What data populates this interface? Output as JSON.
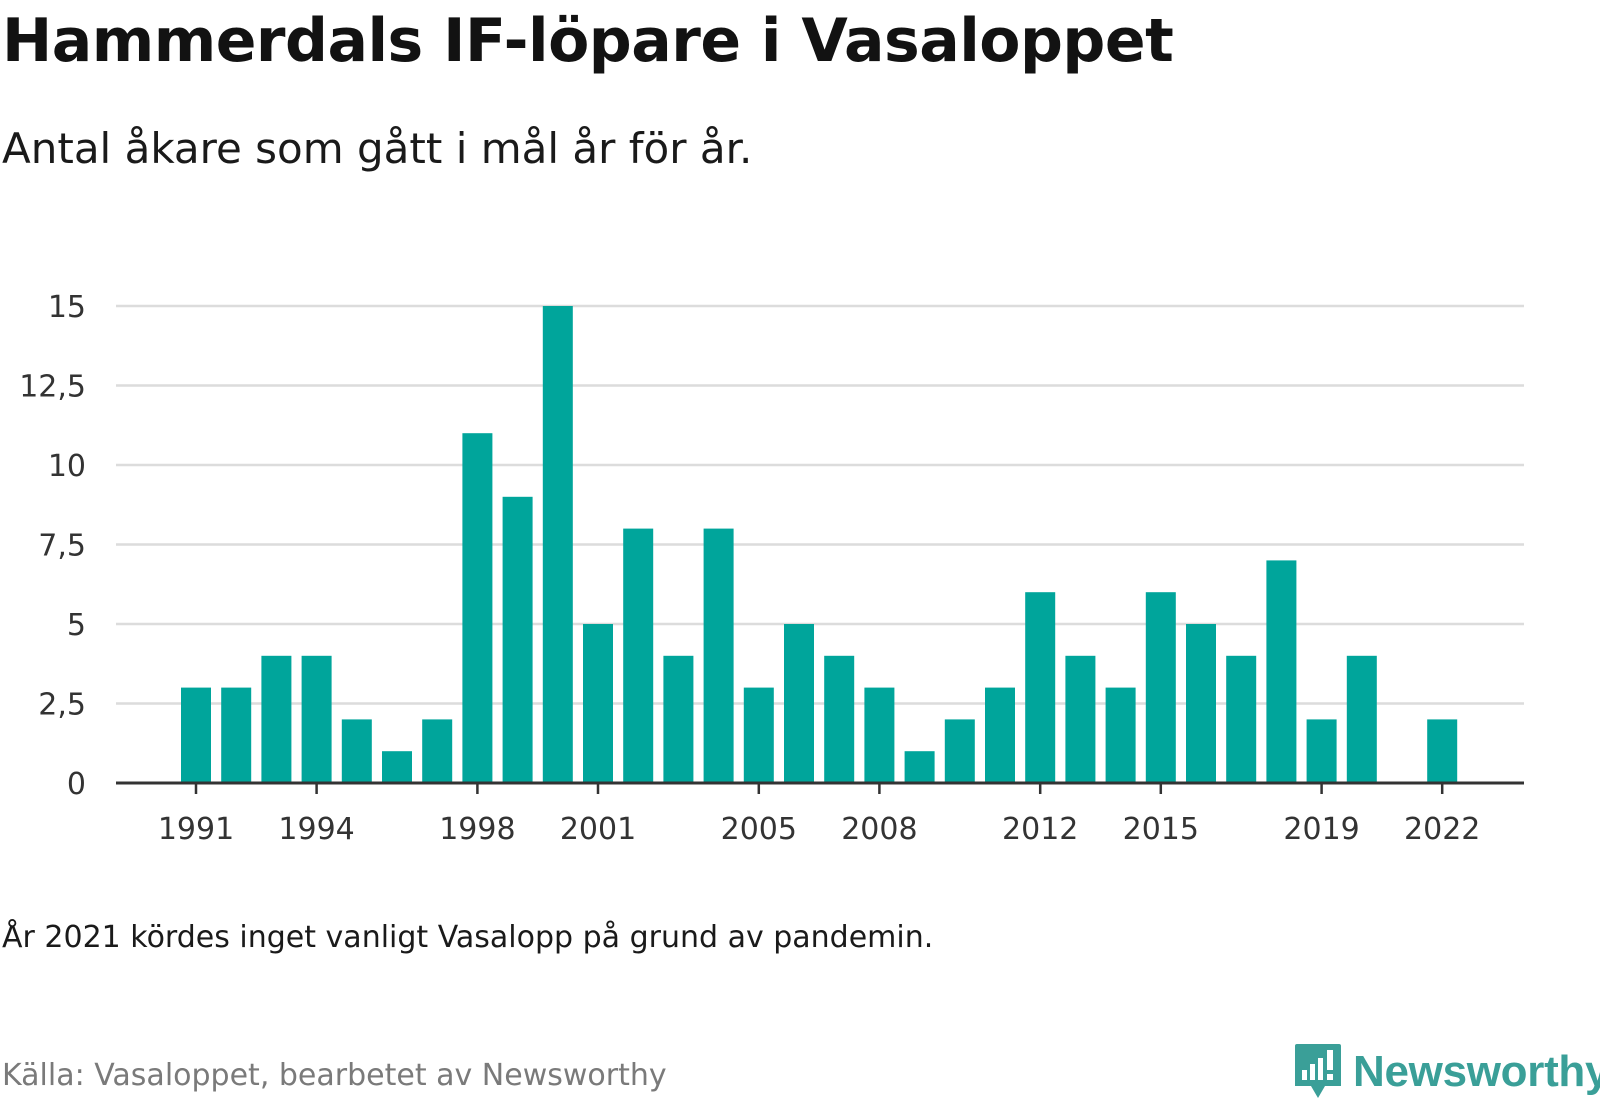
{
  "title": "Hammerdals IF-löpare i Vasaloppet",
  "subtitle": "Antal åkare som gått i mål år för år.",
  "note": "År 2021 kördes inget vanligt Vasalopp på grund av pandemin.",
  "source": "Källa: Vasaloppet, bearbetet av Newsworthy",
  "brand": "Newsworthy",
  "colors": {
    "bar": "#00a59b",
    "grid": "#dcdcdc",
    "axis": "#333333",
    "brand": "#3a9f98"
  },
  "chart_data": {
    "type": "bar",
    "categories": [
      1991,
      1992,
      1993,
      1994,
      1995,
      1996,
      1997,
      1998,
      1999,
      2000,
      2001,
      2002,
      2003,
      2004,
      2005,
      2006,
      2007,
      2008,
      2009,
      2010,
      2011,
      2012,
      2013,
      2014,
      2015,
      2016,
      2017,
      2018,
      2019,
      2020,
      2021,
      2022
    ],
    "values": [
      3,
      3,
      4,
      4,
      2,
      1,
      2,
      11,
      9,
      15,
      5,
      8,
      4,
      8,
      3,
      5,
      4,
      3,
      1,
      2,
      3,
      6,
      4,
      3,
      6,
      5,
      4,
      7,
      2,
      4,
      0,
      2
    ],
    "x_tick_labels": [
      "1991",
      "1994",
      "1998",
      "2001",
      "2005",
      "2008",
      "2012",
      "2015",
      "2019",
      "2022"
    ],
    "y_ticks": [
      0,
      2.5,
      5,
      7.5,
      10,
      12.5,
      15
    ],
    "y_tick_labels": [
      "0",
      "2,5",
      "5",
      "7,5",
      "10",
      "12,5",
      "15"
    ],
    "ylim": [
      0,
      15
    ],
    "grid": true,
    "legend": "none"
  }
}
